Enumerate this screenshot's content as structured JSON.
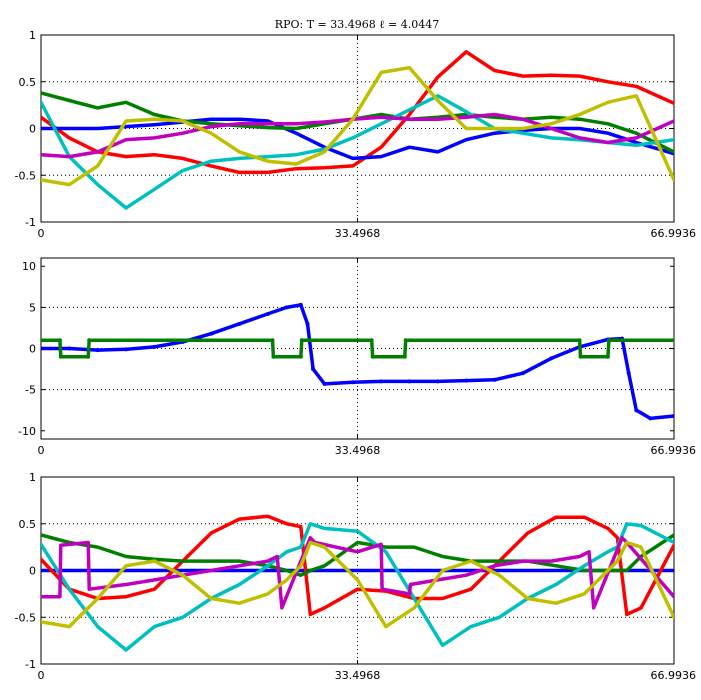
{
  "chart_data": [
    {
      "type": "line",
      "title": "RPO: T = 33.4968   ℓ = 4.0447",
      "xlim": [
        0,
        66.9936
      ],
      "ylim": [
        -1,
        1
      ],
      "x_ticks": [
        "0",
        "33.4968",
        "66.9936"
      ],
      "y_ticks": [
        "1",
        "0.5",
        "0",
        "-0.5",
        "-1"
      ],
      "y_tick_values": [
        1,
        0.5,
        0,
        -0.5,
        -1
      ],
      "grid": true,
      "series": [
        {
          "color": "#ff0000",
          "x": [
            0,
            3,
            6,
            9,
            12,
            15,
            18,
            21,
            24,
            27,
            30,
            33,
            36,
            39,
            42,
            45,
            48,
            51,
            54,
            57,
            60,
            63,
            66.9936
          ],
          "y": [
            0.12,
            -0.1,
            -0.25,
            -0.3,
            -0.28,
            -0.32,
            -0.4,
            -0.47,
            -0.47,
            -0.43,
            -0.42,
            -0.4,
            -0.2,
            0.15,
            0.55,
            0.82,
            0.62,
            0.56,
            0.57,
            0.56,
            0.5,
            0.45,
            0.27
          ]
        },
        {
          "color": "#0000ff",
          "x": [
            0,
            3,
            6,
            9,
            12,
            15,
            18,
            21,
            24,
            27,
            30,
            33,
            36,
            39,
            42,
            45,
            48,
            51,
            54,
            57,
            60,
            63,
            66.9936
          ],
          "y": [
            0.0,
            0.0,
            0.0,
            0.02,
            0.04,
            0.07,
            0.1,
            0.1,
            0.08,
            -0.05,
            -0.2,
            -0.32,
            -0.3,
            -0.2,
            -0.25,
            -0.12,
            -0.05,
            -0.02,
            0.0,
            0.0,
            -0.05,
            -0.15,
            -0.27
          ]
        },
        {
          "color": "#007f00",
          "x": [
            0,
            3,
            6,
            9,
            12,
            15,
            18,
            21,
            24,
            27,
            30,
            33,
            36,
            39,
            42,
            45,
            48,
            51,
            54,
            57,
            60,
            63,
            66.9936
          ],
          "y": [
            0.38,
            0.3,
            0.22,
            0.28,
            0.15,
            0.08,
            0.05,
            0.03,
            0.01,
            0.0,
            0.05,
            0.1,
            0.15,
            0.1,
            0.12,
            0.15,
            0.12,
            0.1,
            0.12,
            0.1,
            0.05,
            -0.05,
            -0.25
          ]
        },
        {
          "color": "#00bfbf",
          "x": [
            0,
            3,
            6,
            9,
            12,
            15,
            18,
            21,
            24,
            27,
            30,
            33,
            36,
            39,
            42,
            45,
            48,
            51,
            54,
            57,
            60,
            63,
            66.9936
          ],
          "y": [
            0.28,
            -0.3,
            -0.6,
            -0.85,
            -0.65,
            -0.45,
            -0.35,
            -0.32,
            -0.3,
            -0.28,
            -0.22,
            -0.1,
            0.05,
            0.2,
            0.35,
            0.18,
            0.0,
            -0.05,
            -0.1,
            -0.12,
            -0.15,
            -0.18,
            -0.12
          ]
        },
        {
          "color": "#bf00bf",
          "x": [
            0,
            3,
            6,
            9,
            12,
            15,
            18,
            21,
            24,
            27,
            30,
            33,
            36,
            39,
            42,
            45,
            48,
            51,
            54,
            57,
            60,
            63,
            66.9936
          ],
          "y": [
            -0.28,
            -0.3,
            -0.25,
            -0.12,
            -0.1,
            -0.05,
            0.02,
            0.05,
            0.05,
            0.05,
            0.07,
            0.1,
            0.12,
            0.1,
            0.1,
            0.12,
            0.15,
            0.1,
            0.0,
            -0.1,
            -0.15,
            -0.1,
            0.08
          ]
        },
        {
          "color": "#bfbf00",
          "x": [
            0,
            3,
            6,
            9,
            12,
            15,
            18,
            21,
            24,
            27,
            30,
            33,
            36,
            39,
            42,
            45,
            48,
            51,
            54,
            57,
            60,
            63,
            66.9936
          ],
          "y": [
            -0.55,
            -0.6,
            -0.4,
            0.08,
            0.1,
            0.08,
            -0.05,
            -0.25,
            -0.35,
            -0.38,
            -0.25,
            0.1,
            0.6,
            0.65,
            0.3,
            0.0,
            0.0,
            0.0,
            0.05,
            0.15,
            0.28,
            0.35,
            -0.55
          ]
        }
      ]
    },
    {
      "type": "scatter",
      "xlim": [
        0,
        66.9936
      ],
      "ylim": [
        -11,
        11
      ],
      "x_ticks": [
        "0",
        "33.4968",
        "66.9936"
      ],
      "y_ticks": [
        "10",
        "5",
        "0",
        "-5",
        "-10"
      ],
      "y_tick_values": [
        10,
        5,
        0,
        -5,
        -10
      ],
      "grid": true,
      "series": [
        {
          "color": "#0000ff",
          "x": [
            0,
            3,
            6,
            9,
            12,
            15,
            18,
            21,
            24,
            26,
            27.5,
            28.2,
            28.8,
            30,
            33,
            36,
            39,
            42,
            45,
            48,
            51,
            54,
            57,
            60,
            61.5,
            62.2,
            63,
            64.5,
            66.9936
          ],
          "y": [
            0.0,
            0.0,
            -0.2,
            -0.1,
            0.2,
            0.8,
            1.8,
            3.0,
            4.2,
            5.0,
            5.3,
            3.0,
            -2.5,
            -4.3,
            -4.1,
            -4.0,
            -4.0,
            -4.0,
            -3.9,
            -3.8,
            -3.0,
            -1.2,
            0.2,
            1.1,
            1.2,
            -3.0,
            -7.5,
            -8.5,
            -8.2
          ]
        },
        {
          "color": "#007f00",
          "x": [
            0,
            2,
            2.1,
            5,
            5.1,
            24.5,
            24.6,
            27.5,
            27.6,
            35,
            35.1,
            38.5,
            38.6,
            57,
            57.1,
            60,
            60.1,
            66.9936
          ],
          "y": [
            1,
            1,
            -1,
            -1,
            1,
            1,
            -1,
            -1,
            1,
            1,
            -1,
            -1,
            1,
            1,
            -1,
            -1,
            1,
            1
          ]
        }
      ]
    },
    {
      "type": "line",
      "xlim": [
        0,
        66.9936
      ],
      "ylim": [
        -1,
        1
      ],
      "x_ticks": [
        "0",
        "33.4968",
        "66.9936"
      ],
      "y_ticks": [
        "1",
        "0.5",
        "0",
        "-0.5",
        "-1"
      ],
      "y_tick_values": [
        1,
        0.5,
        0,
        -0.5,
        -1
      ],
      "grid": true,
      "series": [
        {
          "color": "#0000ff",
          "x": [
            0,
            66.9936
          ],
          "y": [
            0,
            0
          ]
        },
        {
          "color": "#ff0000",
          "x": [
            0,
            3,
            6,
            9,
            12,
            15,
            18,
            21,
            24,
            26,
            27.5,
            28.5,
            30,
            33.5,
            36.5,
            39.5,
            42.5,
            45.5,
            48.5,
            51.5,
            54.5,
            57.5,
            60,
            61,
            62,
            63.5,
            66.9936
          ],
          "y": [
            0.12,
            -0.2,
            -0.3,
            -0.28,
            -0.2,
            0.1,
            0.4,
            0.55,
            0.58,
            0.5,
            0.47,
            -0.47,
            -0.4,
            -0.2,
            -0.22,
            -0.3,
            -0.3,
            -0.2,
            0.1,
            0.4,
            0.57,
            0.57,
            0.45,
            0.35,
            -0.47,
            -0.4,
            0.27
          ]
        },
        {
          "color": "#007f00",
          "x": [
            0,
            3,
            6,
            9,
            12,
            15,
            18,
            21,
            24,
            26,
            27.5,
            28.5,
            30,
            33.5,
            36.5,
            39.5,
            42.5,
            45.5,
            48.5,
            51.5,
            54.5,
            57.5,
            60,
            61,
            62,
            63.5,
            66.9936
          ],
          "y": [
            0.38,
            0.3,
            0.25,
            0.15,
            0.12,
            0.1,
            0.1,
            0.1,
            0.05,
            0.0,
            -0.05,
            0.0,
            0.05,
            0.3,
            0.25,
            0.25,
            0.15,
            0.1,
            0.1,
            0.1,
            0.05,
            0.0,
            0.0,
            0.0,
            0.0,
            0.15,
            0.38
          ]
        },
        {
          "color": "#00bfbf",
          "x": [
            0,
            3,
            6,
            9,
            12,
            15,
            18,
            21,
            24,
            26,
            27.5,
            28.5,
            30,
            33.5,
            36.5,
            39.5,
            42.5,
            45.5,
            48.5,
            51.5,
            54.5,
            57.5,
            60,
            61,
            62,
            63.5,
            66.9936
          ],
          "y": [
            0.28,
            -0.2,
            -0.6,
            -0.85,
            -0.6,
            -0.5,
            -0.3,
            -0.15,
            0.05,
            0.2,
            0.25,
            0.5,
            0.45,
            0.42,
            0.2,
            -0.3,
            -0.8,
            -0.6,
            -0.5,
            -0.3,
            -0.15,
            0.05,
            0.2,
            0.25,
            0.5,
            0.48,
            0.3
          ]
        },
        {
          "color": "#bf00bf",
          "x": [
            0,
            2,
            2.1,
            5,
            5.1,
            9,
            12,
            15,
            18,
            21,
            24,
            25,
            25.5,
            28.5,
            29,
            33.5,
            36,
            36.1,
            39,
            39.1,
            42,
            45,
            48,
            51,
            54,
            57,
            58,
            58.5,
            61.5,
            62,
            66.9936
          ],
          "y": [
            -0.28,
            -0.28,
            0.27,
            0.3,
            -0.2,
            -0.15,
            -0.1,
            -0.05,
            0.0,
            0.05,
            0.1,
            0.15,
            -0.4,
            0.35,
            0.3,
            0.2,
            0.28,
            -0.2,
            -0.25,
            -0.15,
            -0.1,
            -0.05,
            0.05,
            0.1,
            0.1,
            0.15,
            0.2,
            -0.4,
            0.35,
            0.3,
            -0.28
          ]
        },
        {
          "color": "#bfbf00",
          "x": [
            0,
            3,
            6,
            9,
            12,
            15,
            18,
            21,
            24,
            26,
            27.5,
            28.5,
            30,
            33.5,
            36.5,
            39.5,
            42.5,
            45.5,
            48.5,
            51.5,
            54.5,
            57.5,
            60,
            61,
            62,
            63.5,
            66.9936
          ],
          "y": [
            -0.55,
            -0.6,
            -0.3,
            0.05,
            0.1,
            -0.05,
            -0.3,
            -0.35,
            -0.25,
            -0.1,
            0.05,
            0.3,
            0.25,
            -0.1,
            -0.6,
            -0.4,
            0.0,
            0.1,
            -0.05,
            -0.3,
            -0.35,
            -0.25,
            0.0,
            0.1,
            0.3,
            0.25,
            -0.5
          ]
        }
      ]
    }
  ]
}
